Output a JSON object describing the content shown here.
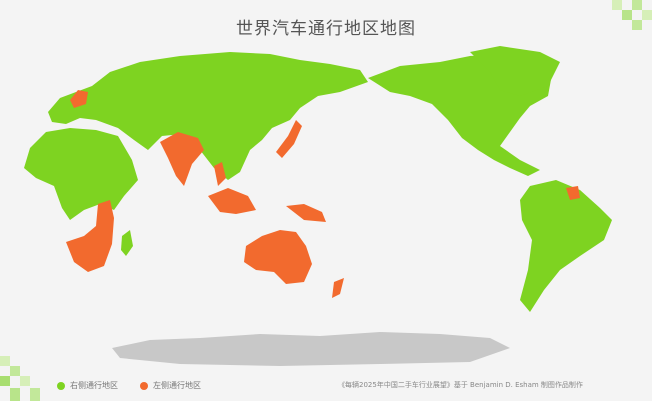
{
  "title": "世界汽车通行地区地图",
  "legend": [
    {
      "label": "右侧通行地区",
      "color": "#7ed321"
    },
    {
      "label": "左侧通行地区",
      "color": "#f26a2e"
    }
  ],
  "source": "《每辆2025年中国二手车行业展望》基于 Benjamin D. Esham 制图作品制作",
  "colors": {
    "right_hand": "#7ed321",
    "left_hand": "#f26a2e",
    "antarctica": "#c8c8c8",
    "background": "#f4f4f4"
  }
}
